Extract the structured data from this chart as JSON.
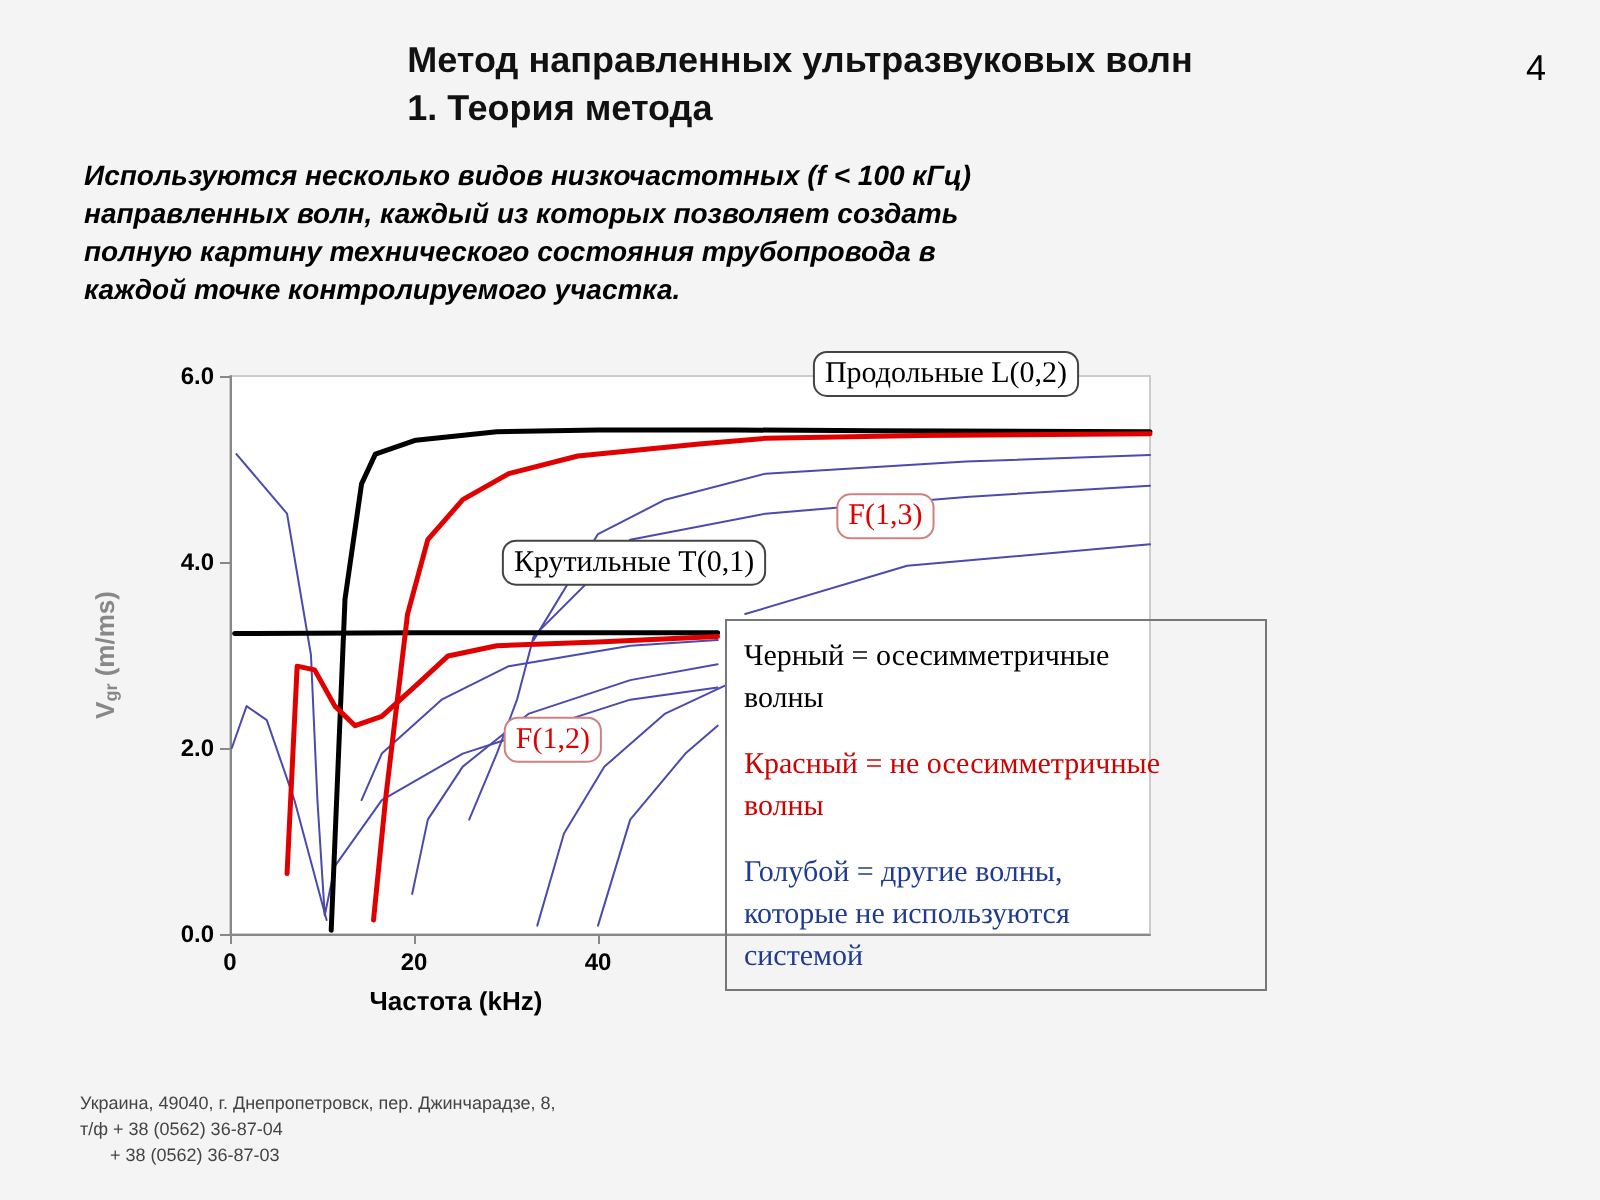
{
  "chart_data": {
    "type": "line",
    "title": "Метод направленных ультразвуковых волн\n1. Теория метода",
    "subtitle": "Используются несколько видов низкочастотных (f < 100 кГц) направленных волн, каждый из которых позволяет создать полную картину технического состояния трубопровода в каждой точке контролируемого участка.",
    "xlabel": "Частота (kHz)",
    "ylabel": "V$_{gr}$ (m/ms)",
    "xlim": [
      0,
      100
    ],
    "xticks": [
      0,
      20,
      40
    ],
    "ylim": [
      0,
      6
    ],
    "yticks": [
      {
        "value": 0,
        "label": "0.0"
      },
      {
        "value": 2,
        "label": "2.0"
      },
      {
        "value": 4,
        "label": "4.0"
      },
      {
        "value": 6,
        "label": "6.0"
      }
    ],
    "grid": false,
    "legend": false,
    "marker": "none",
    "line_style": "solid",
    "series": [
      {
        "name": "Продольные L(0,2)",
        "color": "#000000",
        "x": [
          11,
          12.5,
          14.3,
          15.8,
          20.2,
          29,
          40,
          55,
          70,
          100
        ],
        "values": [
          0.04,
          3.6,
          4.84,
          5.16,
          5.31,
          5.4,
          5.42,
          5.42,
          5.41,
          5.4
        ]
      },
      {
        "name": "Крутильные T(0,1)",
        "color": "#000000",
        "x": [
          0.5,
          20,
          40,
          53
        ],
        "values": [
          3.23,
          3.24,
          3.24,
          3.24
        ]
      },
      {
        "name": "F(1,3)",
        "color": "#e00000",
        "x": [
          15.6,
          16.9,
          19.3,
          21.5,
          25.3,
          30.3,
          37.8,
          51,
          58.2,
          75,
          100
        ],
        "values": [
          0.15,
          1.44,
          3.44,
          4.24,
          4.67,
          4.95,
          5.14,
          5.27,
          5.33,
          5.36,
          5.38
        ]
      },
      {
        "name": "F(1,2)",
        "color": "#e00000",
        "x": [
          6.2,
          7.3,
          9.2,
          11.4,
          13.6,
          16.5,
          20.2,
          23.7,
          29,
          40,
          53
        ],
        "values": [
          0.65,
          2.88,
          2.84,
          2.45,
          2.24,
          2.34,
          2.67,
          2.99,
          3.1,
          3.14,
          3.2
        ]
      },
      {
        "color": "#4a4ab0",
        "x": [
          0.7,
          6.2,
          8.8,
          9.5,
          10.3,
          11.4,
          16.5,
          25.3,
          43.5,
          53
        ],
        "values": [
          5.16,
          4.52,
          3.0,
          1.44,
          0.2,
          0.73,
          1.44,
          1.94,
          2.52,
          2.65
        ]
      },
      {
        "color": "#4a4ab0",
        "x": [
          0.2,
          1.8,
          4,
          7,
          9.5,
          10.5
        ],
        "values": [
          2.0,
          2.45,
          2.3,
          1.44,
          0.52,
          0.15
        ]
      },
      {
        "color": "#4a4ab0",
        "x": [
          14.3,
          16.5,
          23,
          30.3,
          43.5,
          53
        ],
        "values": [
          1.44,
          1.94,
          2.52,
          2.88,
          3.1,
          3.16
        ]
      },
      {
        "color": "#4a4ab0",
        "x": [
          19.8,
          21.5,
          25.3,
          32.5,
          43.5,
          53
        ],
        "values": [
          0.43,
          1.23,
          1.8,
          2.37,
          2.73,
          2.9
        ]
      },
      {
        "color": "#4a4ab0",
        "x": [
          26,
          29,
          31.2,
          33,
          43.5,
          58.2,
          80,
          100
        ],
        "values": [
          1.23,
          1.94,
          2.52,
          3.2,
          4.24,
          4.52,
          4.7,
          4.82
        ]
      },
      {
        "color": "#4a4ab0",
        "x": [
          33,
          40,
          47.3,
          58.2,
          80,
          100
        ],
        "values": [
          3.16,
          4.3,
          4.67,
          4.95,
          5.08,
          5.15
        ]
      },
      {
        "color": "#4a4ab0",
        "x": [
          33.4,
          36.3,
          40.7,
          47.3,
          53.8
        ],
        "values": [
          0.09,
          1.08,
          1.8,
          2.37,
          2.67
        ]
      },
      {
        "color": "#4a4ab0",
        "x": [
          40,
          43.5,
          49.5,
          53
        ],
        "values": [
          0.09,
          1.23,
          1.94,
          2.24
        ]
      },
      {
        "color": "#4a4ab0",
        "x": [
          56,
          73.6,
          100
        ],
        "values": [
          3.44,
          3.96,
          4.19
        ]
      }
    ],
    "annotations": [
      "4",
      "Черный = осесимметричные\nволны",
      "Красный = не осесимметричные\nволны",
      "Голубой = другие волны,\nкоторые не используются\nсистемой",
      "Украина, 49040, г. Днепропетровск, пер. Джинчарадзе, 8,",
      "т/ф + 38 (0562) 36-87-04",
      "+ 38 (0562) 36-87-03"
    ]
  }
}
